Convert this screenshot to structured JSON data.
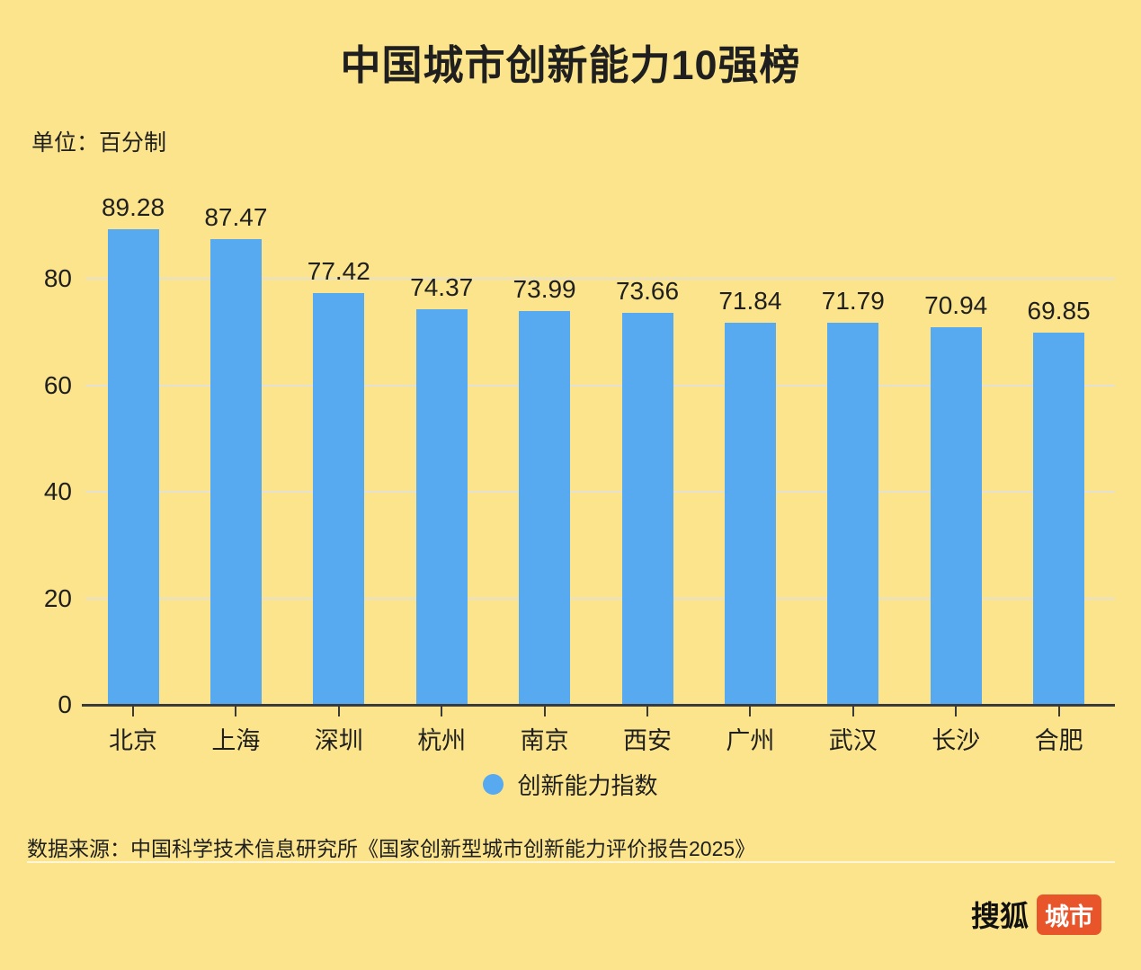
{
  "title": "中国城市创新能力10强榜",
  "unit_label": "单位：百分制",
  "legend": {
    "label": "创新能力指数"
  },
  "source": "数据来源：中国科学技术信息研究所《国家创新型城市创新能力评价报告2025》",
  "footer_logo": {
    "brand": "搜狐",
    "badge": "城市"
  },
  "colors": {
    "background": "#FBE48B",
    "bar": "#57A9F0",
    "text": "#1F1F1F",
    "gridline": "#E4E0D2",
    "axis": "#3A3A3A",
    "badge": "#E8552B"
  },
  "chart_data": {
    "type": "bar",
    "title": "中国城市创新能力10强榜",
    "unit": "百分制",
    "categories": [
      "北京",
      "上海",
      "深圳",
      "杭州",
      "南京",
      "西安",
      "广州",
      "武汉",
      "长沙",
      "合肥"
    ],
    "values": [
      89.28,
      87.47,
      77.42,
      74.37,
      73.99,
      73.66,
      71.84,
      71.79,
      70.94,
      69.85
    ],
    "series_name": "创新能力指数",
    "xlabel": "",
    "ylabel": "",
    "yticks": [
      0,
      20,
      40,
      60,
      80
    ],
    "ylim": [
      0,
      100
    ],
    "grid": true,
    "legend_position": "bottom",
    "data_labels_shown": true
  }
}
